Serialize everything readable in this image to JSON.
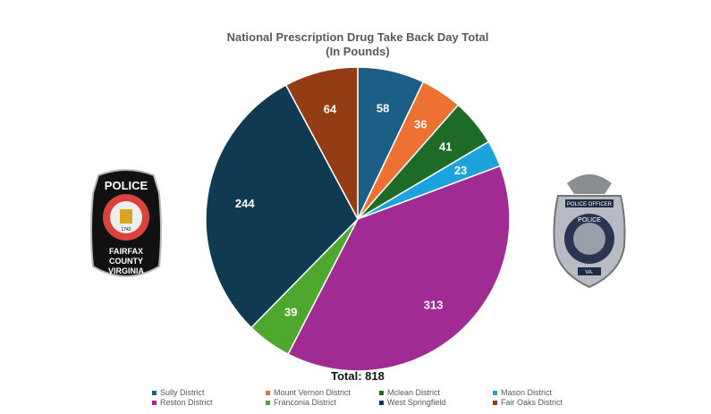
{
  "chart_data": {
    "type": "pie",
    "title": "National Prescription Drug Take Back Day Total",
    "subtitle": "(In Pounds)",
    "total_label": "Total: 818",
    "categories": [
      "Sully District",
      "Mount Vernon District",
      "Mclean District",
      "Mason District",
      "Reston District",
      "Franconia District",
      "West Springfield",
      "Fair Oaks District"
    ],
    "values": [
      58,
      36,
      41,
      23,
      313,
      39,
      244,
      64
    ],
    "colors": [
      "#1b5e86",
      "#ed7132",
      "#1e6b27",
      "#1aa3dc",
      "#a02b93",
      "#4ea72e",
      "#0f3a52",
      "#943c13"
    ],
    "legend_position": "bottom"
  },
  "logos": {
    "left": "POLICE COUNTY OF FAIRFAX 1742 VIRGINIA FAIRFAX COUNTY VIRGINIA",
    "right": "POLICE OFFICER POLICE FAIRFAX COUNTY VA."
  }
}
